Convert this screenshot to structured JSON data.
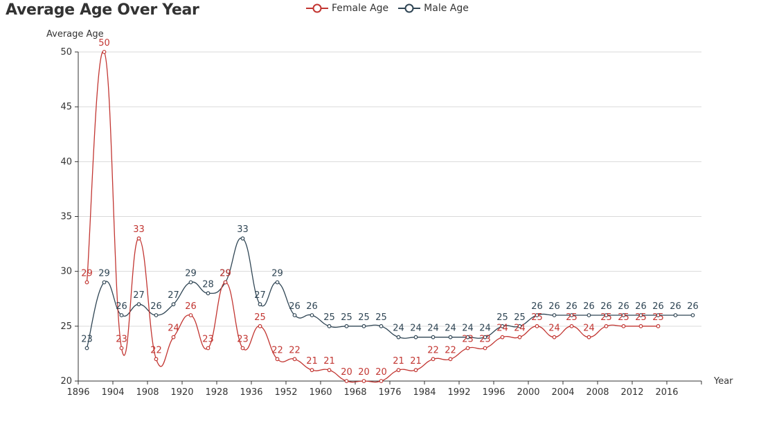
{
  "chart_data": {
    "type": "line",
    "title": "Average Age Over Year",
    "xlabel": "Year",
    "ylabel": "Average Age",
    "ylim": [
      20,
      50
    ],
    "yticks": [
      20,
      25,
      30,
      35,
      40,
      45,
      50
    ],
    "grid": true,
    "legend_position": "top-center",
    "smooth": true,
    "x_tick_labels": [
      "1896",
      "1904",
      "1908",
      "1920",
      "1928",
      "1936",
      "1952",
      "1960",
      "1968",
      "1976",
      "1984",
      "1992",
      "1996",
      "2000",
      "2004",
      "2008",
      "2012",
      "2016"
    ],
    "series": [
      {
        "name": "Female Age",
        "color": "#c23531",
        "points": [
          [
            0,
            29
          ],
          [
            1,
            50
          ],
          [
            2,
            23
          ],
          [
            3,
            33
          ],
          [
            4,
            22
          ],
          [
            5,
            24
          ],
          [
            6,
            26
          ],
          [
            7,
            23
          ],
          [
            8,
            29
          ],
          [
            9,
            23
          ],
          [
            10,
            25
          ],
          [
            11,
            22
          ],
          [
            12,
            22
          ],
          [
            13,
            21
          ],
          [
            14,
            21
          ],
          [
            15,
            20
          ],
          [
            16,
            20
          ],
          [
            17,
            20
          ],
          [
            18,
            21
          ],
          [
            19,
            21
          ],
          [
            20,
            22
          ],
          [
            21,
            22
          ],
          [
            22,
            23
          ],
          [
            23,
            23
          ],
          [
            24,
            24
          ],
          [
            25,
            24
          ],
          [
            26,
            25
          ],
          [
            27,
            24
          ],
          [
            28,
            25
          ],
          [
            29,
            24
          ],
          [
            30,
            25
          ],
          [
            31,
            25
          ],
          [
            32,
            25
          ],
          [
            33,
            25
          ]
        ]
      },
      {
        "name": "Male Age",
        "color": "#2f4554",
        "points": [
          [
            0,
            23
          ],
          [
            1,
            29
          ],
          [
            2,
            26
          ],
          [
            3,
            27
          ],
          [
            4,
            26
          ],
          [
            5,
            27
          ],
          [
            6,
            29
          ],
          [
            7,
            28
          ],
          [
            8,
            29
          ],
          [
            9,
            33
          ],
          [
            10,
            27
          ],
          [
            11,
            29
          ],
          [
            12,
            26
          ],
          [
            13,
            26
          ],
          [
            14,
            25
          ],
          [
            15,
            25
          ],
          [
            16,
            25
          ],
          [
            17,
            25
          ],
          [
            18,
            24
          ],
          [
            19,
            24
          ],
          [
            20,
            24
          ],
          [
            21,
            24
          ],
          [
            22,
            24
          ],
          [
            23,
            24
          ],
          [
            24,
            25
          ],
          [
            25,
            25
          ],
          [
            26,
            26
          ],
          [
            27,
            26
          ],
          [
            28,
            26
          ],
          [
            29,
            26
          ],
          [
            30,
            26
          ],
          [
            31,
            26
          ],
          [
            32,
            26
          ],
          [
            33,
            26
          ],
          [
            34,
            26
          ],
          [
            35,
            26
          ]
        ]
      }
    ]
  }
}
